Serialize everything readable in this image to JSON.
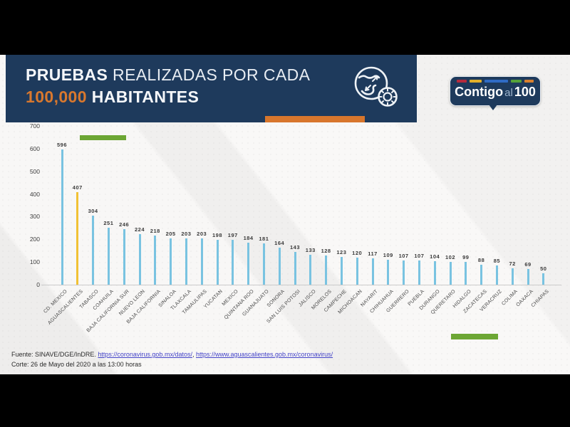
{
  "header": {
    "title_bold": "PRUEBAS",
    "title_rest": " REALIZADAS POR CADA",
    "title_highlight": "100,000",
    "title_rest2": " HABITANTES",
    "bg_color": "#1e3a5c",
    "highlight_color": "#d8782e"
  },
  "logo": {
    "word_bold": "Contigo",
    "word_light": "al",
    "word_number": "100",
    "bg_color": "#1e3a5c",
    "stripe_colors": [
      "#b62b3d",
      "#e2b02a",
      "#2f6bc4",
      "#55a23a",
      "#d8802f"
    ]
  },
  "accents": {
    "orange_bar_color": "#d8762c",
    "green_bar_color": "#6ca634"
  },
  "chart_data": {
    "type": "bar",
    "title": "PRUEBAS REALIZADAS POR CADA 100,000 HABITANTES",
    "categories": [
      "CD. MEXICO",
      "AGUASCALIENTES",
      "TABASCO",
      "COAHUILA",
      "BAJA CALIFORNIA SUR",
      "NUEVO LEON",
      "BAJA CALIFORNIA",
      "SINALOA",
      "TLAXCALA",
      "TAMAULIPAS",
      "YUCATAN",
      "MEXICO",
      "QUINTANA ROO",
      "GUANAJUATO",
      "SONORA",
      "SAN LUIS POTOSI",
      "JALISCO",
      "MORELOS",
      "CAMPECHE",
      "MICHOACAN",
      "NAYARIT",
      "CHIHUAHUA",
      "GUERRERO",
      "PUEBLA",
      "DURANGO",
      "QUERETARO",
      "HIDALGO",
      "ZACATECAS",
      "VERACRUZ",
      "COLIMA",
      "OAXACA",
      "CHIAPAS"
    ],
    "values": [
      596,
      407,
      304,
      251,
      246,
      224,
      218,
      205,
      203,
      203,
      198,
      197,
      184,
      181,
      164,
      143,
      133,
      128,
      123,
      120,
      117,
      109,
      107,
      107,
      104,
      102,
      99,
      88,
      85,
      72,
      69,
      50
    ],
    "bar_color": "#79c3e1",
    "highlight_index": 1,
    "highlight_color": "#f1c134",
    "yticks": [
      0,
      100,
      200,
      300,
      400,
      500,
      600,
      700
    ],
    "ylim": [
      0,
      700
    ],
    "grid": false,
    "legend": false,
    "value_labels": true
  },
  "footer": {
    "source_prefix": "Fuente: SINAVE/DGE/InDRE. ",
    "link1": "https://coronavirus.gob.mx/datos/",
    "separator": ", ",
    "link2": "https://www.aguascalientes.gob.mx/coronavirus/",
    "cutoff_line": "Corte: 26 de Mayo del 2020 a las 13:00 horas",
    "link_color": "#4343c8"
  }
}
